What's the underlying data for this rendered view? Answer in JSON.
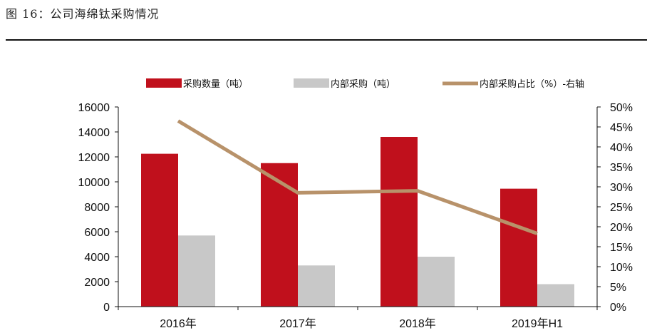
{
  "caption": "图 16：公司海绵钛采购情况",
  "chart_data": {
    "type": "bar",
    "title": "",
    "categories": [
      "2016年",
      "2017年",
      "2018年",
      "2019年H1"
    ],
    "series": [
      {
        "name": "采购数量（吨）",
        "kind": "bar",
        "axis": "left",
        "color": "#c0101c",
        "values": [
          12250,
          11500,
          13600,
          9450
        ]
      },
      {
        "name": "内部采购（吨）",
        "kind": "bar",
        "axis": "left",
        "color": "#c8c8c8",
        "values": [
          5700,
          3300,
          4000,
          1800
        ]
      },
      {
        "name": "内部采购占比（%）-右轴",
        "kind": "line",
        "axis": "right",
        "color": "#b8926a",
        "values": [
          46.5,
          28.5,
          29,
          18.3
        ]
      }
    ],
    "y_left": {
      "min": 0,
      "max": 16000,
      "ticks": [
        "0",
        "2000",
        "4000",
        "6000",
        "8000",
        "10000",
        "12000",
        "14000",
        "16000"
      ]
    },
    "y_right": {
      "min": 0,
      "max": 50,
      "ticks": [
        "0%",
        "5%",
        "10%",
        "15%",
        "20%",
        "25%",
        "30%",
        "35%",
        "40%",
        "45%",
        "50%"
      ]
    },
    "legend_position": "top",
    "grid": false
  }
}
